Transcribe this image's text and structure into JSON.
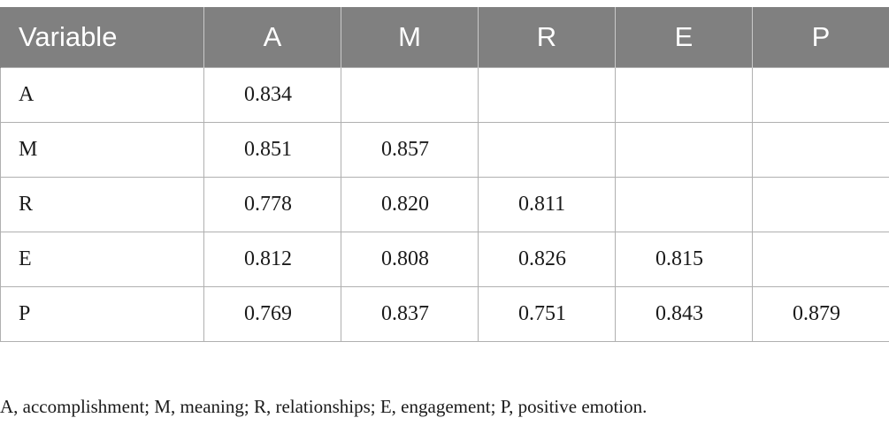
{
  "table": {
    "headers": [
      "Variable",
      "A",
      "M",
      "R",
      "E",
      "P"
    ],
    "rows": [
      {
        "label": "A",
        "cells": [
          "0.834",
          "",
          "",
          "",
          ""
        ]
      },
      {
        "label": "M",
        "cells": [
          "0.851",
          "0.857",
          "",
          "",
          ""
        ]
      },
      {
        "label": "R",
        "cells": [
          "0.778",
          "0.820",
          "0.811",
          "",
          ""
        ]
      },
      {
        "label": "E",
        "cells": [
          "0.812",
          "0.808",
          "0.826",
          "0.815",
          ""
        ]
      },
      {
        "label": "P",
        "cells": [
          "0.769",
          "0.837",
          "0.751",
          "0.843",
          "0.879"
        ]
      }
    ]
  },
  "footnote": "A, accomplishment; M, meaning; R, relationships; E, engagement; P, positive emotion.",
  "colors": {
    "header_bg": "#808080",
    "header_text": "#ffffff",
    "border": "#b0b0b0"
  }
}
